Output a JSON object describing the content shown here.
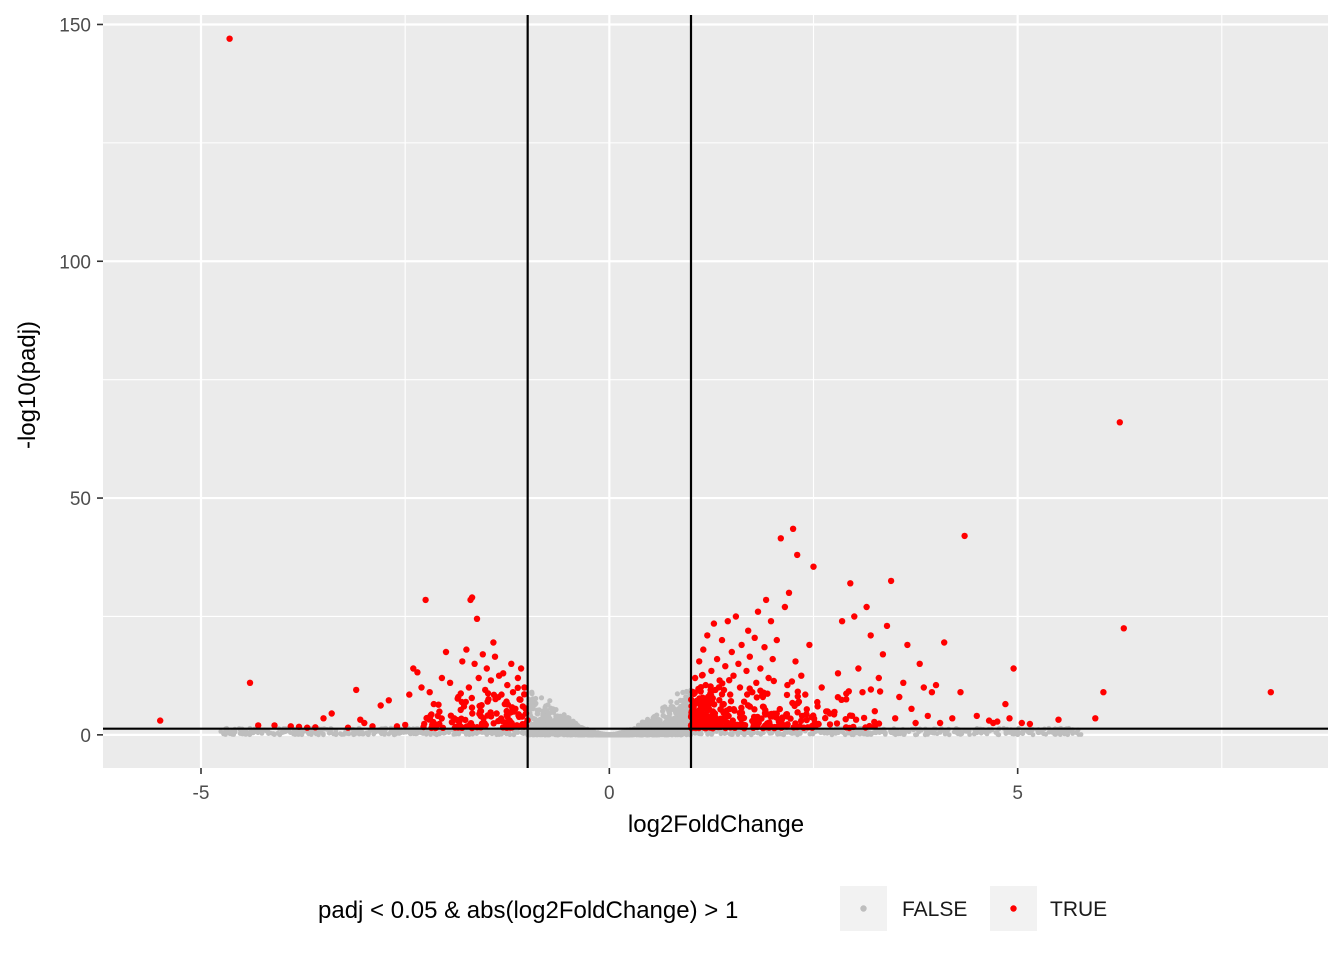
{
  "chart_data": {
    "type": "scatter",
    "title": "",
    "xlabel": "log2FoldChange",
    "ylabel": "-log10(padj)",
    "xlim": [
      -6.2,
      8.8
    ],
    "ylim": [
      -7,
      152
    ],
    "x_ticks": [
      -5,
      0,
      5
    ],
    "x_tick_labels": [
      "-5",
      "0",
      "5"
    ],
    "y_ticks": [
      0,
      50,
      100,
      150
    ],
    "y_tick_labels": [
      "0",
      "50",
      "100",
      "150"
    ],
    "grid": true,
    "vlines": [
      -1,
      1
    ],
    "hlines": [
      1.3
    ],
    "legend": {
      "position": "bottom",
      "title": "padj < 0.05 & abs(log2FoldChange) > 1",
      "entries": [
        "FALSE",
        "TRUE"
      ]
    },
    "colors": {
      "FALSE": "#bebebe",
      "TRUE": "#ff0000",
      "panel": "#ebebeb",
      "grid": "#ffffff",
      "refline": "#000000"
    },
    "series": [
      {
        "name": "TRUE",
        "points": [
          [
            -4.65,
            147
          ],
          [
            -5.5,
            3
          ],
          [
            -4.4,
            11
          ],
          [
            -4.3,
            2
          ],
          [
            -4.1,
            2
          ],
          [
            -3.9,
            1.8
          ],
          [
            -3.8,
            1.7
          ],
          [
            -3.7,
            1.5
          ],
          [
            -3.6,
            1.6
          ],
          [
            -3.5,
            3.5
          ],
          [
            -3.4,
            4.5
          ],
          [
            -3.2,
            1.5
          ],
          [
            -3.1,
            9.5
          ],
          [
            -3.05,
            3.2
          ],
          [
            -3.0,
            2.5
          ],
          [
            -2.9,
            1.8
          ],
          [
            -2.8,
            6.2
          ],
          [
            -2.7,
            7.3
          ],
          [
            -2.6,
            1.8
          ],
          [
            -2.5,
            2.1
          ],
          [
            -2.45,
            8.5
          ],
          [
            -2.4,
            14.0
          ],
          [
            -2.35,
            13.2
          ],
          [
            -2.3,
            10.0
          ],
          [
            -2.25,
            28.5
          ],
          [
            -2.2,
            9.0
          ],
          [
            -2.15,
            6.5
          ],
          [
            -2.1,
            4.0
          ],
          [
            -2.05,
            12.0
          ],
          [
            -2.0,
            17.5
          ],
          [
            -1.95,
            11.0
          ],
          [
            -1.9,
            3.5
          ],
          [
            -1.85,
            8.0
          ],
          [
            -1.8,
            15.5
          ],
          [
            -1.78,
            6.0
          ],
          [
            -1.75,
            18.0
          ],
          [
            -1.72,
            10.0
          ],
          [
            -1.7,
            28.5
          ],
          [
            -1.68,
            29.0
          ],
          [
            -1.65,
            15.0
          ],
          [
            -1.62,
            24.5
          ],
          [
            -1.6,
            12.0
          ],
          [
            -1.58,
            5.0
          ],
          [
            -1.55,
            17.0
          ],
          [
            -1.52,
            9.5
          ],
          [
            -1.5,
            14.0
          ],
          [
            -1.48,
            7.5
          ],
          [
            -1.45,
            11.5
          ],
          [
            -1.42,
            19.5
          ],
          [
            -1.4,
            16.5
          ],
          [
            -1.38,
            4.5
          ],
          [
            -1.35,
            12.5
          ],
          [
            -1.32,
            8.5
          ],
          [
            -1.3,
            13.0
          ],
          [
            -1.28,
            6.5
          ],
          [
            -1.25,
            10.5
          ],
          [
            -1.22,
            3.0
          ],
          [
            -1.2,
            15.0
          ],
          [
            -1.18,
            9.0
          ],
          [
            -1.15,
            5.5
          ],
          [
            -1.12,
            12.0
          ],
          [
            -1.1,
            7.5
          ],
          [
            -1.08,
            14.0
          ],
          [
            -1.06,
            6.0
          ],
          [
            -1.04,
            10.0
          ],
          [
            -1.02,
            4.5
          ],
          [
            1.05,
            12.0
          ],
          [
            1.1,
            15.5
          ],
          [
            1.12,
            7.0
          ],
          [
            1.15,
            18.0
          ],
          [
            1.18,
            10.5
          ],
          [
            1.2,
            21.0
          ],
          [
            1.22,
            5.5
          ],
          [
            1.25,
            13.5
          ],
          [
            1.28,
            23.5
          ],
          [
            1.3,
            9.5
          ],
          [
            1.32,
            16.0
          ],
          [
            1.35,
            11.5
          ],
          [
            1.38,
            20.0
          ],
          [
            1.4,
            6.5
          ],
          [
            1.42,
            14.5
          ],
          [
            1.45,
            24.0
          ],
          [
            1.48,
            8.5
          ],
          [
            1.5,
            17.5
          ],
          [
            1.52,
            12.5
          ],
          [
            1.55,
            25.0
          ],
          [
            1.58,
            15.0
          ],
          [
            1.6,
            10.0
          ],
          [
            1.62,
            19.0
          ],
          [
            1.65,
            7.0
          ],
          [
            1.68,
            13.5
          ],
          [
            1.7,
            22.0
          ],
          [
            1.72,
            16.5
          ],
          [
            1.75,
            9.0
          ],
          [
            1.78,
            20.5
          ],
          [
            1.8,
            11.0
          ],
          [
            1.82,
            26.0
          ],
          [
            1.85,
            14.0
          ],
          [
            1.88,
            8.0
          ],
          [
            1.9,
            18.5
          ],
          [
            1.92,
            28.5
          ],
          [
            1.95,
            12.0
          ],
          [
            1.98,
            24.0
          ],
          [
            2.0,
            16.0
          ],
          [
            2.05,
            20.0
          ],
          [
            2.1,
            41.5
          ],
          [
            2.15,
            27.0
          ],
          [
            2.18,
            10.5
          ],
          [
            2.2,
            30.0
          ],
          [
            2.25,
            43.5
          ],
          [
            2.28,
            15.5
          ],
          [
            2.3,
            38.0
          ],
          [
            2.35,
            12.5
          ],
          [
            2.4,
            8.5
          ],
          [
            2.45,
            19.0
          ],
          [
            2.5,
            35.5
          ],
          [
            2.55,
            6.0
          ],
          [
            2.6,
            10.0
          ],
          [
            2.7,
            4.5
          ],
          [
            2.8,
            13.0
          ],
          [
            2.85,
            24.0
          ],
          [
            2.9,
            7.5
          ],
          [
            2.95,
            32.0
          ],
          [
            3.0,
            25.0
          ],
          [
            3.05,
            14.0
          ],
          [
            3.1,
            9.0
          ],
          [
            3.15,
            27.0
          ],
          [
            3.2,
            21.0
          ],
          [
            3.25,
            5.0
          ],
          [
            3.3,
            12.0
          ],
          [
            3.35,
            17.0
          ],
          [
            3.4,
            23.0
          ],
          [
            3.45,
            32.5
          ],
          [
            3.5,
            3.5
          ],
          [
            3.55,
            8.0
          ],
          [
            3.6,
            11.0
          ],
          [
            3.65,
            19.0
          ],
          [
            3.7,
            5.5
          ],
          [
            3.75,
            2.5
          ],
          [
            3.8,
            15.0
          ],
          [
            3.85,
            10.0
          ],
          [
            3.9,
            4.0
          ],
          [
            3.95,
            9.0
          ],
          [
            4.0,
            10.5
          ],
          [
            4.05,
            2.5
          ],
          [
            4.1,
            19.5
          ],
          [
            4.2,
            3.5
          ],
          [
            4.3,
            9.0
          ],
          [
            4.35,
            42.0
          ],
          [
            4.5,
            4.0
          ],
          [
            4.65,
            3.0
          ],
          [
            4.7,
            2.5
          ],
          [
            4.75,
            2.8
          ],
          [
            4.85,
            6.5
          ],
          [
            4.9,
            3.5
          ],
          [
            4.95,
            14.0
          ],
          [
            5.05,
            2.5
          ],
          [
            5.15,
            2.3
          ],
          [
            5.5,
            3.2
          ],
          [
            5.95,
            3.5
          ],
          [
            6.05,
            9.0
          ],
          [
            6.25,
            66.0
          ],
          [
            6.3,
            22.5
          ],
          [
            8.1,
            9.0
          ]
        ]
      }
    ]
  }
}
